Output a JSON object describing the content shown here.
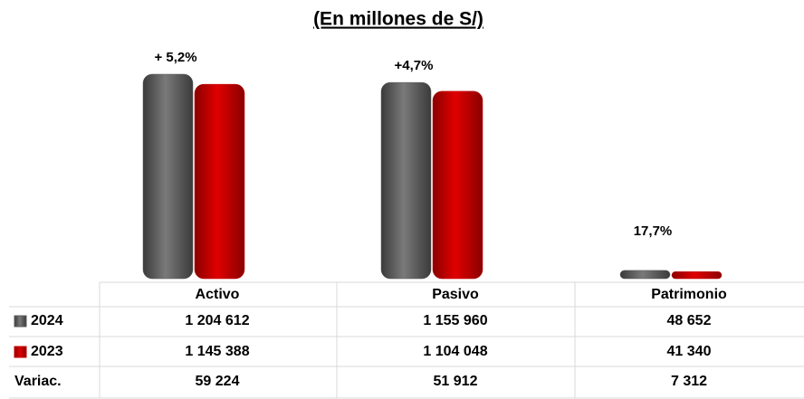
{
  "chart_data": {
    "type": "bar",
    "title": "(En millones de S/)",
    "categories": [
      "Activo",
      "Pasivo",
      "Patrimonio"
    ],
    "series": [
      {
        "name": "2024",
        "color": "#5a5a5a",
        "values": [
          1204612,
          1155960,
          48652
        ],
        "value_labels": [
          "1 204 612",
          "1 155 960",
          "48 652"
        ]
      },
      {
        "name": "2023",
        "color": "#c00000",
        "values": [
          1145388,
          1104048,
          41340
        ],
        "value_labels": [
          "1 145 388",
          "1 104 048",
          "41 340"
        ]
      }
    ],
    "variation": {
      "name": "Variac.",
      "values": [
        59224,
        51912,
        7312
      ],
      "value_labels": [
        "59 224",
        "51 912",
        "7 312"
      ]
    },
    "annotations": [
      "+ 5,2%",
      "+4,7%",
      "17,7%"
    ]
  }
}
